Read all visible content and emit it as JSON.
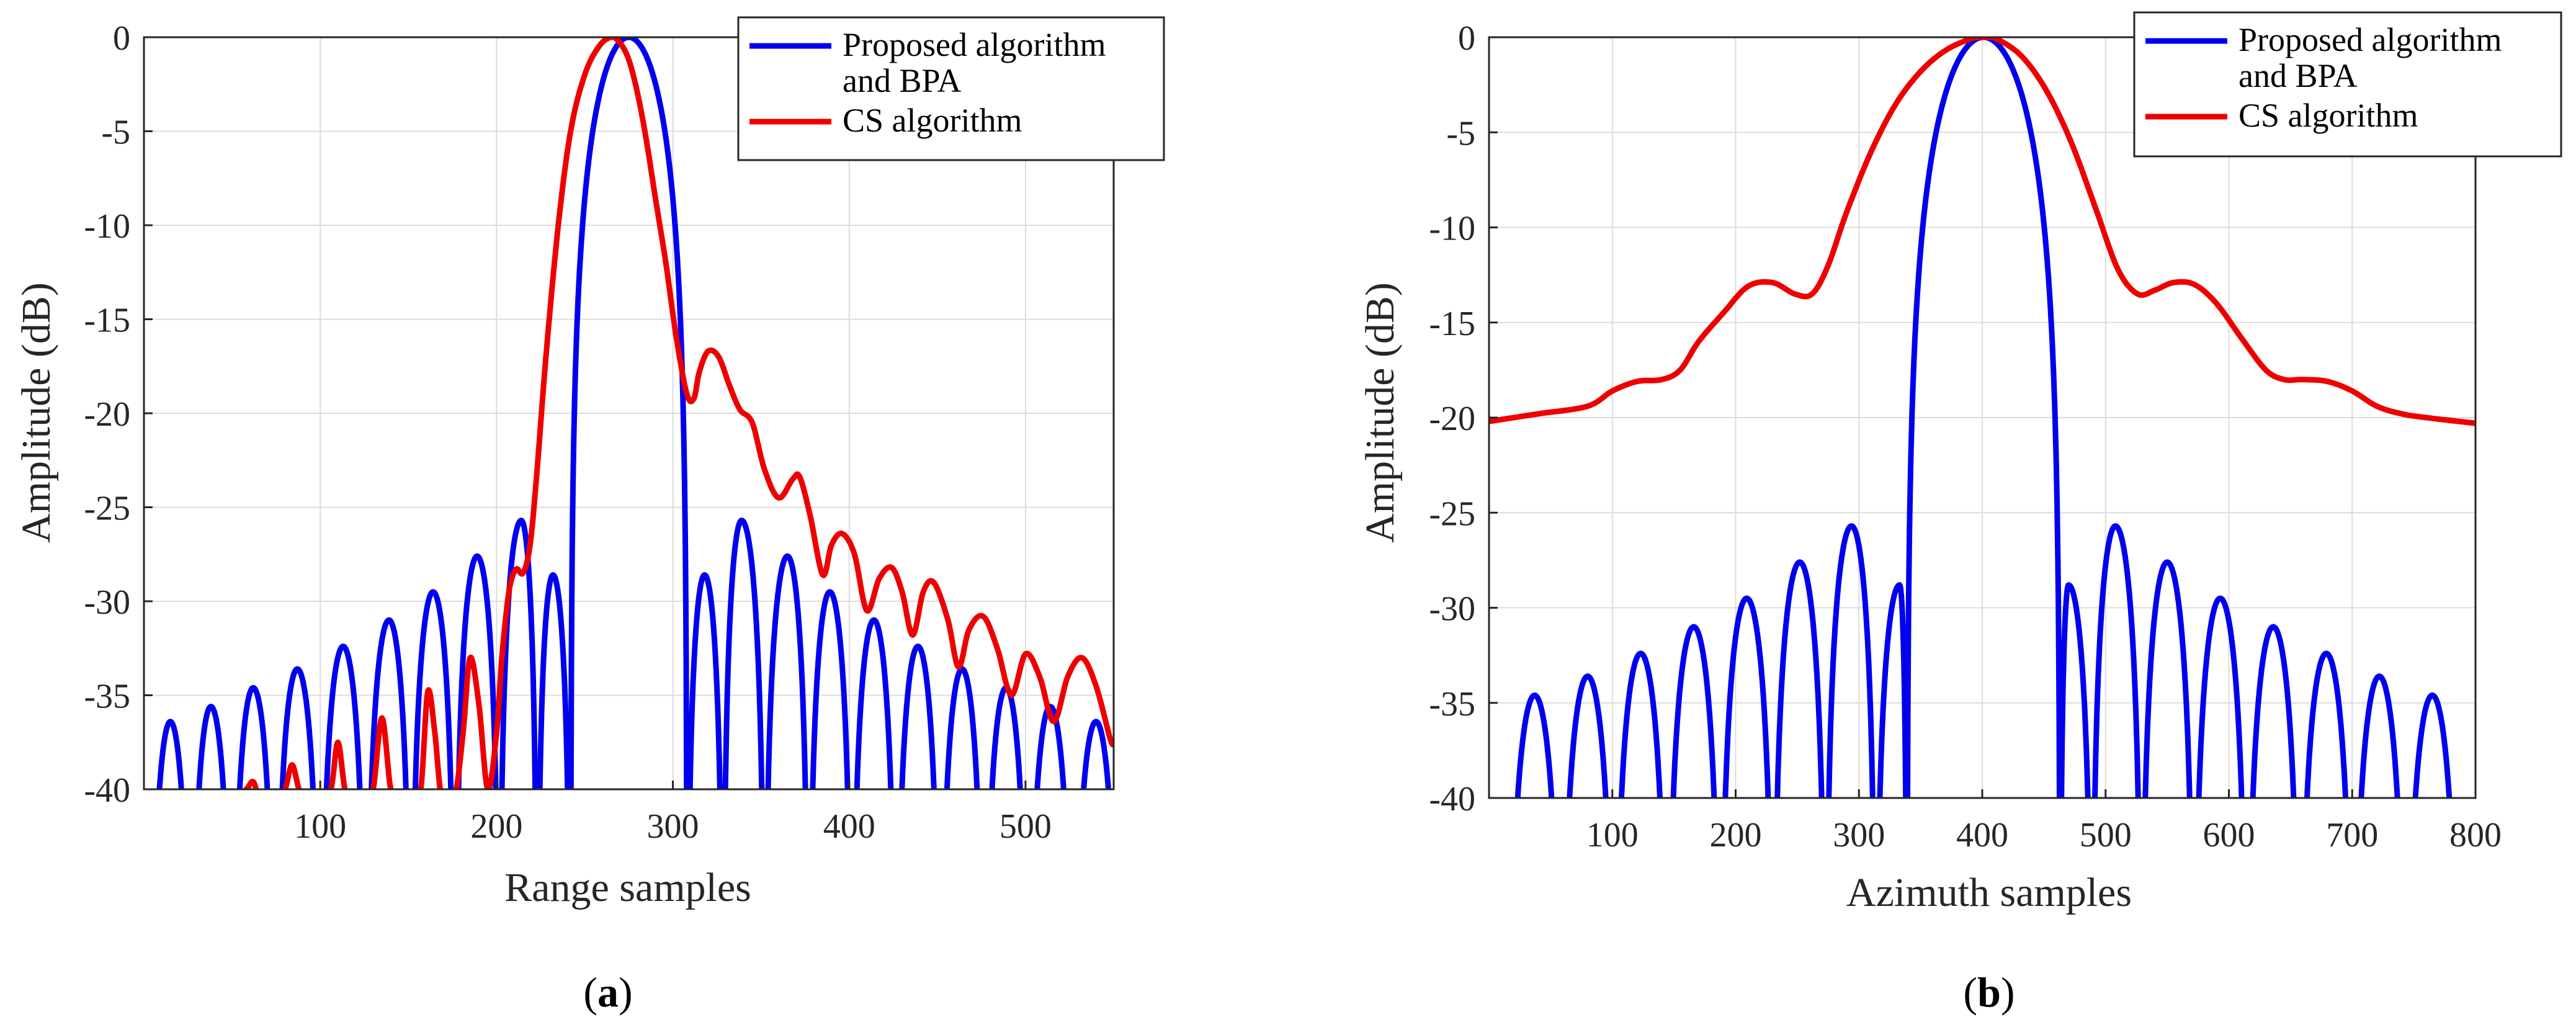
{
  "figure": {
    "panels": [
      {
        "caption": "(a)",
        "caption_bold": "a",
        "chart_index": 0
      },
      {
        "caption": "(b)",
        "caption_bold": "b",
        "chart_index": 1
      }
    ]
  },
  "chart_data": [
    {
      "type": "line",
      "title": "",
      "xlabel": "Range samples",
      "ylabel": "Amplitude (dB)",
      "xlim": [
        0,
        550
      ],
      "ylim": [
        -40,
        0
      ],
      "xticks": [
        100,
        200,
        300,
        400,
        500
      ],
      "yticks": [
        0,
        -5,
        -10,
        -15,
        -20,
        -25,
        -30,
        -35,
        -40
      ],
      "grid": true,
      "legend": {
        "location": "top-right",
        "entries": [
          {
            "lines": [
              "Proposed algorithm",
              "and BPA"
            ],
            "color": "#0000ee"
          },
          {
            "lines": [
              "CS algorithm"
            ],
            "color": "#ee0000"
          }
        ]
      },
      "series": [
        {
          "name": "Proposed algorithm and BPA",
          "color": "#0000ee",
          "model": "sinc",
          "center": 275,
          "first_null_offset": 33,
          "lobe_spacing": 25,
          "floor_db": -40,
          "x": [
            15,
            38,
            62,
            87,
            113,
            139,
            164,
            189,
            214,
            232,
            275,
            318,
            339,
            365,
            389,
            414,
            439,
            464,
            489,
            514,
            540
          ],
          "y": [
            -36.4,
            -35.6,
            -34.6,
            -33.6,
            -32.4,
            -31.0,
            -29.5,
            -27.6,
            -25.7,
            -28.6,
            0,
            -28.6,
            -25.7,
            -27.6,
            -29.5,
            -31.0,
            -32.4,
            -33.6,
            -34.6,
            -35.6,
            -36.4
          ]
        },
        {
          "name": "CS algorithm",
          "color": "#ee0000",
          "x": [
            0,
            50,
            58,
            62,
            66,
            75,
            80,
            84,
            88,
            92,
            100,
            106,
            110,
            114,
            118,
            125,
            130,
            135,
            140,
            145,
            152,
            157,
            161,
            165,
            169,
            176,
            181,
            185,
            190,
            195,
            200,
            203,
            207,
            211,
            215,
            219,
            223,
            228,
            235,
            242,
            250,
            258,
            265,
            270,
            275,
            280,
            285,
            290,
            296,
            302,
            308,
            312,
            315,
            320,
            326,
            332,
            338,
            345,
            352,
            360,
            368,
            372,
            378,
            385,
            390,
            396,
            403,
            410,
            417,
            424,
            430,
            436,
            442,
            448,
            456,
            462,
            468,
            476,
            484,
            492,
            500,
            508,
            516,
            524,
            532,
            540,
            548,
            550
          ],
          "y": [
            -40.5,
            -40.5,
            -40.0,
            -39.6,
            -40.5,
            -40.5,
            -40.0,
            -38.7,
            -40.0,
            -40.5,
            -40.5,
            -40.0,
            -37.5,
            -40.0,
            -40.5,
            -40.5,
            -40.0,
            -36.2,
            -40.0,
            -40.5,
            -40.5,
            -40.0,
            -34.8,
            -37.0,
            -40.5,
            -40.5,
            -37.0,
            -33.0,
            -35.5,
            -40.0,
            -37.0,
            -33.0,
            -29.5,
            -28.3,
            -28.5,
            -27.0,
            -23.0,
            -17.0,
            -10.0,
            -5.0,
            -2.0,
            -0.5,
            0.0,
            -0.3,
            -1.2,
            -3.0,
            -5.5,
            -8.5,
            -12.0,
            -16.0,
            -19.0,
            -19.2,
            -17.8,
            -16.7,
            -17.0,
            -18.5,
            -19.8,
            -20.5,
            -23.0,
            -24.5,
            -23.5,
            -23.4,
            -25.5,
            -28.6,
            -27.0,
            -26.4,
            -27.5,
            -30.5,
            -28.8,
            -28.2,
            -29.5,
            -31.8,
            -29.5,
            -29.0,
            -31.0,
            -33.5,
            -31.5,
            -30.8,
            -32.5,
            -35.0,
            -32.8,
            -34.0,
            -36.4,
            -34.0,
            -33.0,
            -34.5,
            -37.3,
            -37.6
          ]
        }
      ]
    },
    {
      "type": "line",
      "title": "",
      "xlabel": "Azimuth samples",
      "ylabel": "Amplitude (dB)",
      "xlim": [
        0,
        800
      ],
      "ylim": [
        -40,
        0
      ],
      "xticks": [
        100,
        200,
        300,
        400,
        500,
        600,
        700,
        800
      ],
      "yticks": [
        0,
        -5,
        -10,
        -15,
        -20,
        -25,
        -30,
        -35,
        -40
      ],
      "grid": true,
      "legend": {
        "location": "top-right",
        "entries": [
          {
            "lines": [
              "Proposed algorithm",
              "and BPA"
            ],
            "color": "#0000ee"
          },
          {
            "lines": [
              "CS algorithm"
            ],
            "color": "#ee0000"
          }
        ]
      },
      "series": [
        {
          "name": "Proposed algorithm and BPA",
          "color": "#0000ee",
          "model": "sinc",
          "center": 401,
          "first_null_offset": 62,
          "lobe_spacing": 43,
          "floor_db": -40,
          "x": [
            37,
            80,
            123,
            166,
            209,
            252,
            294,
            333,
            401,
            470,
            508,
            550,
            593,
            636,
            679,
            722,
            765
          ],
          "y": [
            -34.6,
            -33.6,
            -32.4,
            -31.0,
            -29.5,
            -27.6,
            -25.7,
            -28.8,
            0,
            -28.8,
            -25.7,
            -27.6,
            -29.5,
            -31.0,
            -32.4,
            -33.6,
            -34.6
          ]
        },
        {
          "name": "CS algorithm",
          "color": "#ee0000",
          "x": [
            0,
            40,
            80,
            100,
            120,
            140,
            155,
            170,
            190,
            210,
            230,
            248,
            262,
            275,
            290,
            310,
            330,
            350,
            370,
            390,
            401,
            412,
            432,
            452,
            472,
            492,
            510,
            526,
            540,
            555,
            572,
            590,
            610,
            630,
            645,
            660,
            680,
            700,
            720,
            740,
            760,
            800
          ],
          "y": [
            -20.2,
            -19.8,
            -19.4,
            -18.6,
            -18.1,
            -18.0,
            -17.5,
            -16.0,
            -14.5,
            -13.1,
            -12.9,
            -13.5,
            -13.5,
            -12.0,
            -9.2,
            -6.0,
            -3.5,
            -1.8,
            -0.7,
            -0.1,
            0.0,
            -0.1,
            -1.0,
            -2.8,
            -5.5,
            -9.0,
            -12.2,
            -13.5,
            -13.3,
            -12.9,
            -13.0,
            -14.0,
            -15.8,
            -17.5,
            -18.0,
            -18.0,
            -18.1,
            -18.6,
            -19.4,
            -19.8,
            -20.0,
            -20.3
          ]
        }
      ]
    }
  ]
}
